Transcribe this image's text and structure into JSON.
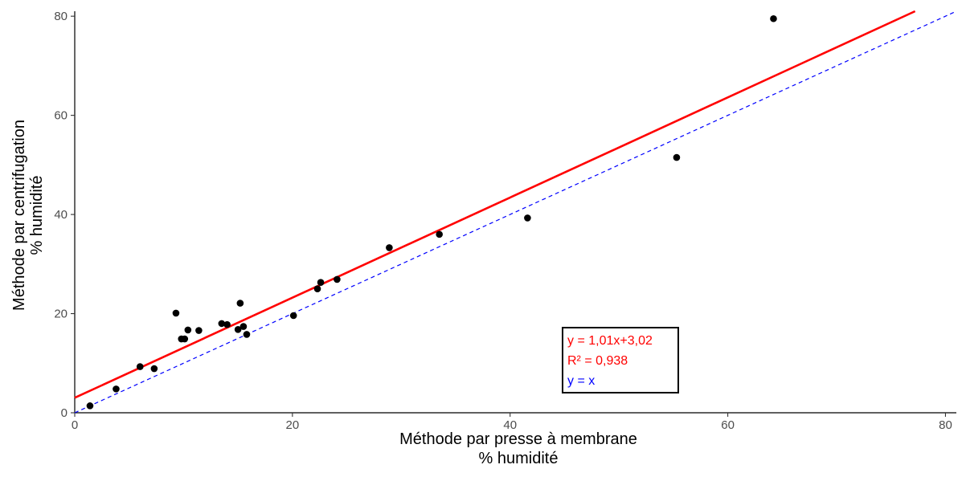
{
  "chart_data": {
    "type": "scatter",
    "xlabel": [
      "Méthode par presse à membrane",
      "% humidité"
    ],
    "ylabel": [
      "Méthode par centrifugation",
      "% humidité"
    ],
    "xlim": [
      0,
      81
    ],
    "ylim": [
      0,
      81
    ],
    "x_ticks": [
      0,
      20,
      40,
      60,
      80
    ],
    "y_ticks": [
      0,
      20,
      40,
      60,
      80
    ],
    "x_tick_labels": [
      "0",
      "20",
      "40",
      "60",
      "80"
    ],
    "y_tick_labels": [
      "0",
      "20",
      "40",
      "60",
      "80"
    ],
    "grid": false,
    "points": {
      "x": [
        1.4,
        3.8,
        6.0,
        7.3,
        9.3,
        9.8,
        10.1,
        10.4,
        11.4,
        13.5,
        14.0,
        15.0,
        15.2,
        15.5,
        15.8,
        20.1,
        22.3,
        22.6,
        24.1,
        28.9,
        33.5,
        41.6,
        55.3,
        64.2
      ],
      "y": [
        1.4,
        4.8,
        9.3,
        8.9,
        20.1,
        14.9,
        14.9,
        16.7,
        16.6,
        18.0,
        17.8,
        16.8,
        22.1,
        17.4,
        15.8,
        19.6,
        25.0,
        26.3,
        26.9,
        33.3,
        36.0,
        39.3,
        51.5,
        79.5
      ],
      "color": "#000000"
    },
    "regression_line": {
      "slope": 1.01,
      "intercept": 3.02,
      "color": "#ff0000"
    },
    "identity_line": {
      "slope": 1,
      "intercept": 0,
      "color": "#0000ff",
      "style": "dashed"
    },
    "legend": {
      "entries": [
        {
          "text": "y = 1,01x+3,02",
          "color": "#ff0000"
        },
        {
          "text": "R² = 0,938",
          "color": "#ff0000"
        },
        {
          "text": "y = x",
          "color": "#0000ff"
        }
      ],
      "placement": "bottom-right"
    }
  }
}
